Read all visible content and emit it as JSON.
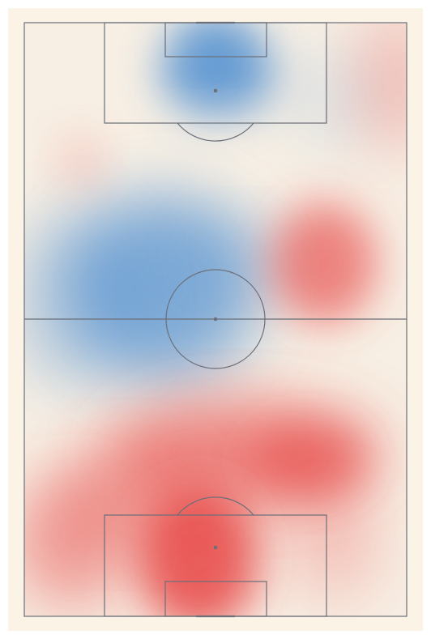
{
  "colors": {
    "frame_background": "#fbf3e6",
    "pitch_neutral": "#f7efe4",
    "line": "#6b6f78",
    "team_blue": "#3f86cf",
    "team_red": "#e63b3b"
  },
  "icons": {
    "center_spot": "spot",
    "penalty_spot": "spot"
  }
}
